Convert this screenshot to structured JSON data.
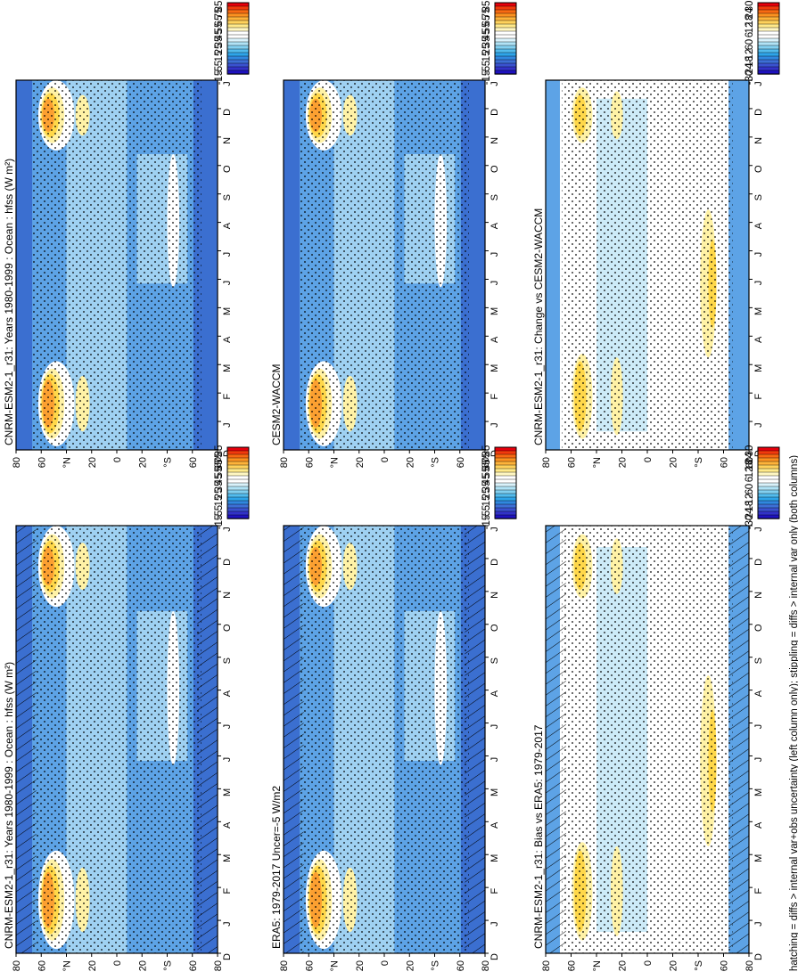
{
  "footnote": "hatching = diffs > internal var+obs uncertainty (left column only); stippling = diffs > internal var only (both columns)",
  "months_axis": [
    "D",
    "J",
    "F",
    "M",
    "A",
    "M",
    "J",
    "J",
    "A",
    "S",
    "O",
    "N",
    "D",
    "J"
  ],
  "lat_axis": [
    "80",
    "60",
    "°N",
    "20",
    "0",
    "20",
    "°S",
    "60",
    "80"
  ],
  "colorbars": {
    "absolute": {
      "labels": [
        "85",
        "75",
        "65",
        "55",
        "45",
        "35",
        "25",
        "15",
        "5",
        "-5",
        "-15"
      ],
      "colors": [
        "#e8000b",
        "#f23a0c",
        "#f86a12",
        "#fc9220",
        "#feb33a",
        "#ffd25c",
        "#ffea8a",
        "#fff7c2",
        "#ffffff",
        "#ffffff",
        "#d9f2fb",
        "#b0e3f6",
        "#82d0f0",
        "#53bced",
        "#2ea4e9",
        "#3088df",
        "#3d6fd6",
        "#3a52cf",
        "#3233c8",
        "#1f12c0"
      ]
    },
    "difference": {
      "labels": [
        "30",
        "24",
        "18",
        "12",
        "6",
        "0",
        "-6",
        "-12",
        "-18",
        "-24",
        "-30"
      ],
      "colors": [
        "#e8000b",
        "#f23a0c",
        "#f86a12",
        "#fc9220",
        "#feb33a",
        "#ffd25c",
        "#ffea8a",
        "#fff7c2",
        "#ffffff",
        "#ffffff",
        "#d9f2fb",
        "#b0e3f6",
        "#82d0f0",
        "#53bced",
        "#2ea4e9",
        "#3088df",
        "#3d6fd6",
        "#3a52cf",
        "#3233c8",
        "#1f12c0"
      ]
    }
  },
  "colors": {
    "deep_blue": "#3b6fd0",
    "mid_blue": "#5da3e6",
    "light_blue": "#9fd1f2",
    "pale_blue": "#cdebf8",
    "white": "#ffffff",
    "pale_yellow": "#fff2a6",
    "yellow": "#ffd84a",
    "orange": "#fca031",
    "red_orange": "#f25b14",
    "red": "#d9140c"
  },
  "chart_data": [
    {
      "type": "heatmap",
      "panel": "top-left",
      "title": "CNRM-ESM2-1_r31: Years 1980-1999 : Ocean : hfss (W m²)",
      "x": "month (D–J, cyclic)",
      "y": "latitude 80°N to 80°S",
      "colorbar": "absolute",
      "hatching": true,
      "stippling": true,
      "features": [
        "winter maxima 60–85 near 55–65°N in DJF",
        "most ocean 5–25",
        "near-zero at polar ends"
      ]
    },
    {
      "type": "heatmap",
      "panel": "top-right",
      "title": "CNRM-ESM2-1_r31: Years 1980-1999 : Ocean : hfss (W m²)",
      "x": "month (D–J, cyclic)",
      "y": "latitude",
      "colorbar": "absolute",
      "hatching": false,
      "stippling": true
    },
    {
      "type": "heatmap",
      "panel": "middle-left",
      "title": "ERA5: 1979-2017 Uncer=-5 W/m2",
      "x": "month (D–J, cyclic)",
      "y": "latitude",
      "colorbar": "absolute",
      "hatching": true,
      "stippling": true
    },
    {
      "type": "heatmap",
      "panel": "middle-right",
      "title": "CESM2-WACCM",
      "x": "month (D–J, cyclic)",
      "y": "latitude",
      "colorbar": "absolute",
      "hatching": false,
      "stippling": true
    },
    {
      "type": "heatmap",
      "panel": "bottom-left",
      "title": "CNRM-ESM2-1_r31: Bias vs ERA5: 1979-2017",
      "x": "month (D–J, cyclic)",
      "y": "latitude",
      "colorbar": "difference",
      "hatching": true,
      "stippling": true
    },
    {
      "type": "heatmap",
      "panel": "bottom-right",
      "title": "CNRM-ESM2-1_r31: Change vs CESM2-WACCM",
      "x": "month (D–J, cyclic)",
      "y": "latitude",
      "colorbar": "difference",
      "hatching": false,
      "stippling": true
    }
  ]
}
